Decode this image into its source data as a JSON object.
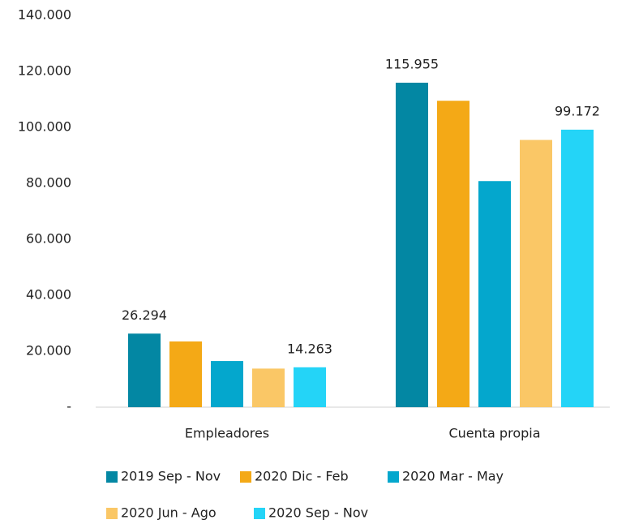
{
  "chart_data": {
    "type": "bar",
    "categories": [
      "Empleadores",
      "Cuenta propia"
    ],
    "series": [
      {
        "name": "2019 Sep - Nov",
        "color": "#0387a3",
        "values": [
          26294,
          115955
        ],
        "value_labels": [
          "26.294",
          "115.955"
        ]
      },
      {
        "name": "2020 Dic - Feb",
        "color": "#f4a916",
        "values": [
          23500,
          109500
        ]
      },
      {
        "name": "2020 Mar - May",
        "color": "#04a7cd",
        "values": [
          16500,
          80800
        ]
      },
      {
        "name": "2020 Jun - Ago",
        "color": "#fac766",
        "values": [
          13800,
          95500
        ]
      },
      {
        "name": "2020 Sep - Nov",
        "color": "#24d4f7",
        "values": [
          14263,
          99172
        ],
        "value_labels": [
          "14.263",
          "99.172"
        ]
      }
    ],
    "ylim": [
      0,
      140000
    ],
    "yticks": [
      {
        "value": 0,
        "label": "-"
      },
      {
        "value": 20000,
        "label": "20.000"
      },
      {
        "value": 40000,
        "label": "40.000"
      },
      {
        "value": 60000,
        "label": "60.000"
      },
      {
        "value": 80000,
        "label": "80.000"
      },
      {
        "value": 100000,
        "label": "100.000"
      },
      {
        "value": 120000,
        "label": "120.000"
      },
      {
        "value": 140000,
        "label": "140.000"
      }
    ],
    "grid": false,
    "legend": "bottom"
  }
}
